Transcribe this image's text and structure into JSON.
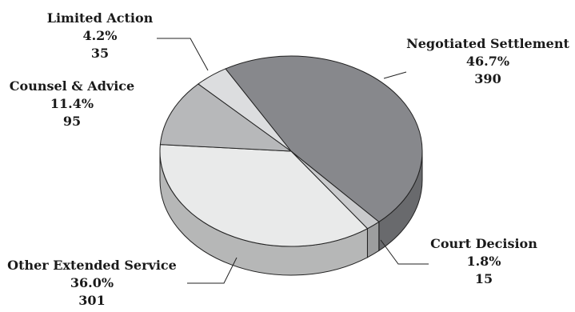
{
  "chart_data": {
    "type": "pie",
    "style": "3d-tilted",
    "title": "",
    "slices": [
      {
        "label": "Negotiated Settlement",
        "percent": "46.7%",
        "count": "390",
        "value": 390,
        "color": "#87888c"
      },
      {
        "label": "Court Decision",
        "percent": "1.8%",
        "count": "15",
        "value": 15,
        "color": "#c9cacc"
      },
      {
        "label": "Other Extended Service",
        "percent": "36.0%",
        "count": "301",
        "value": 301,
        "color": "#e9eaea"
      },
      {
        "label": "Counsel & Advice",
        "percent": "11.4%",
        "count": "95",
        "value": 95,
        "color": "#b7b8ba"
      },
      {
        "label": "Limited Action",
        "percent": "4.2%",
        "count": "35",
        "value": 35,
        "color": "#dcdddf"
      }
    ],
    "legend": "none",
    "grid": false
  }
}
